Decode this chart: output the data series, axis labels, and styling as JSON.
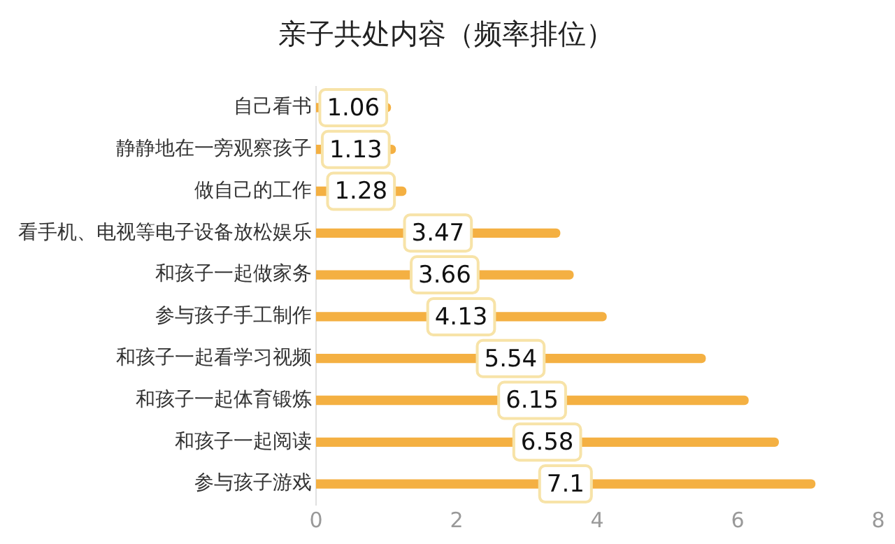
{
  "chart_data": {
    "type": "bar",
    "orientation": "horizontal",
    "title": "亲子共处内容（频率排位）",
    "categories": [
      "自己看书",
      "静静地在一旁观察孩子",
      "做自己的工作",
      "看手机、电视等电子设备放松娱乐",
      "和孩子一起做家务",
      "参与孩子手工制作",
      "和孩子一起看学习视频",
      "和孩子一起体育锻炼",
      "和孩子一起阅读",
      "参与孩子游戏"
    ],
    "values": [
      1.06,
      1.13,
      1.28,
      3.47,
      3.66,
      4.13,
      5.54,
      6.15,
      6.58,
      7.1
    ],
    "color": "#f4b042",
    "xlim": [
      0,
      8
    ],
    "xticks": [
      0,
      2,
      4,
      6,
      8
    ],
    "grid": false,
    "data_labels": true,
    "legend": false
  }
}
